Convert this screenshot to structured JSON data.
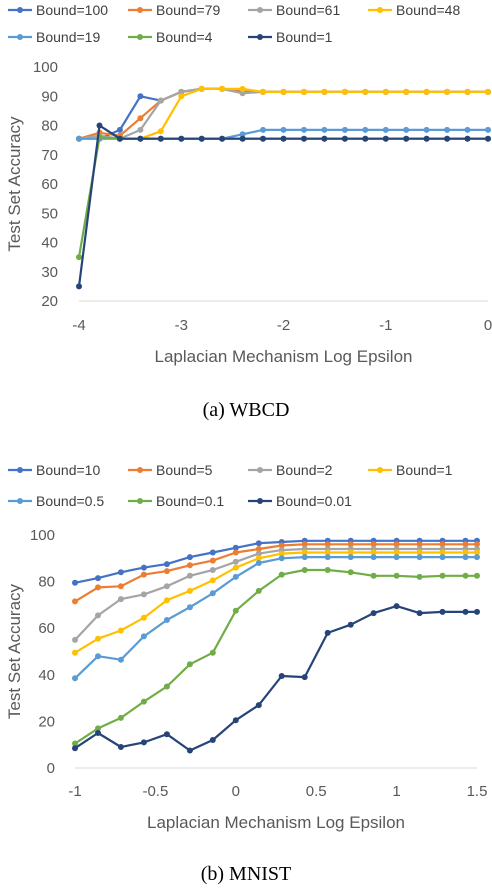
{
  "chart_data": [
    {
      "type": "line",
      "caption": "(a)  WBCD",
      "xlabel": "Laplacian Mechanism Log Epsilon",
      "ylabel": "Test Set Accuracy",
      "xlim": [
        -4,
        0
      ],
      "ylim": [
        20,
        100
      ],
      "xticks": [
        -4,
        -3,
        -2,
        -1,
        0
      ],
      "xtick_labels": [
        "-4",
        "-3",
        "-2",
        "-1",
        "0"
      ],
      "yticks": [
        20,
        30,
        40,
        50,
        60,
        70,
        80,
        90,
        100
      ],
      "ytick_labels": [
        "20",
        "30",
        "40",
        "50",
        "60",
        "70",
        "80",
        "90",
        "100"
      ],
      "grid": false,
      "legend_position": "top",
      "x": [
        -4.0,
        -3.8,
        -3.6,
        -3.4,
        -3.2,
        -3.0,
        -2.8,
        -2.6,
        -2.4,
        -2.2,
        -2.0,
        -1.8,
        -1.6,
        -1.4,
        -1.2,
        -1.0,
        -0.8,
        -0.6,
        -0.4,
        -0.2,
        0.0
      ],
      "series": [
        {
          "name": "Bound=100",
          "color": "#4472C4",
          "values": [
            75.5,
            75.5,
            78.5,
            90,
            88.5,
            91.5,
            92.5,
            92.5,
            91.5,
            91.5,
            91.5,
            91.5,
            91.5,
            91.5,
            91.5,
            91.5,
            91.5,
            91.5,
            91.5,
            91.5,
            91.5
          ]
        },
        {
          "name": "Bound=79",
          "color": "#ED7D31",
          "values": [
            75.5,
            77.5,
            76.5,
            82.5,
            88.5,
            91.5,
            92.5,
            92.5,
            91.5,
            91.5,
            91.5,
            91.5,
            91.5,
            91.5,
            91.5,
            91.5,
            91.5,
            91.5,
            91.5,
            91.5,
            91.5
          ]
        },
        {
          "name": "Bound=61",
          "color": "#A5A5A5",
          "values": [
            75.5,
            76.5,
            75.5,
            78.5,
            88.5,
            91.5,
            92.5,
            92.5,
            91,
            91.5,
            91.5,
            91.5,
            91.5,
            91.5,
            91.5,
            91.5,
            91.5,
            91.5,
            91.5,
            91.5,
            91.5
          ]
        },
        {
          "name": "Bound=48",
          "color": "#FFC000",
          "values": [
            75.5,
            75.5,
            75.5,
            75.5,
            78,
            90,
            92.5,
            92.5,
            92.5,
            91.5,
            91.5,
            91.5,
            91.5,
            91.5,
            91.5,
            91.5,
            91.5,
            91.5,
            91.5,
            91.5,
            91.5
          ]
        },
        {
          "name": "Bound=19",
          "color": "#5B9BD5",
          "values": [
            75.5,
            75.5,
            75.5,
            75.5,
            75.5,
            75.5,
            75.5,
            75.5,
            77,
            78.5,
            78.5,
            78.5,
            78.5,
            78.5,
            78.5,
            78.5,
            78.5,
            78.5,
            78.5,
            78.5,
            78.5
          ]
        },
        {
          "name": "Bound=4",
          "color": "#70AD47",
          "values": [
            35,
            76,
            75.5,
            75.5,
            75.5,
            75.5,
            75.5,
            75.5,
            75.5,
            75.5,
            75.5,
            75.5,
            75.5,
            75.5,
            75.5,
            75.5,
            75.5,
            75.5,
            75.5,
            75.5,
            75.5
          ]
        },
        {
          "name": "Bound=1",
          "color": "#264478",
          "values": [
            25,
            80,
            75.5,
            75.5,
            75.5,
            75.5,
            75.5,
            75.5,
            75.5,
            75.5,
            75.5,
            75.5,
            75.5,
            75.5,
            75.5,
            75.5,
            75.5,
            75.5,
            75.5,
            75.5,
            75.5
          ]
        }
      ]
    },
    {
      "type": "line",
      "caption": "(b)  MNIST",
      "xlabel": "Laplacian Mechanism Log Epsilon",
      "ylabel": "Test Set Accuracy",
      "xlim": [
        -1,
        1.5
      ],
      "ylim": [
        0,
        100
      ],
      "xticks": [
        -1,
        -0.5,
        0,
        0.5,
        1,
        1.5
      ],
      "xtick_labels": [
        "-1",
        "-0.5",
        "0",
        "0.5",
        "1",
        "1.5"
      ],
      "yticks": [
        0,
        20,
        40,
        60,
        80,
        100
      ],
      "ytick_labels": [
        "0",
        "20",
        "40",
        "60",
        "80",
        "100"
      ],
      "grid": false,
      "legend_position": "top",
      "x": [
        -1.0,
        -0.8571,
        -0.7143,
        -0.5714,
        -0.4286,
        -0.2857,
        -0.1429,
        0.0,
        0.1429,
        0.2857,
        0.4286,
        0.5714,
        0.7143,
        0.8571,
        1.0,
        1.1429,
        1.2857,
        1.4286,
        1.5714
      ],
      "series": [
        {
          "name": "Bound=10",
          "color": "#4472C4",
          "values": [
            79.5,
            81.5,
            84,
            86,
            87.5,
            90.5,
            92.5,
            94.5,
            96.5,
            97,
            97.5,
            97.5,
            97.5,
            97.5,
            97.5,
            97.5,
            97.5,
            97.5,
            97.5
          ]
        },
        {
          "name": "Bound=5",
          "color": "#ED7D31",
          "values": [
            71.5,
            77.5,
            78,
            83,
            84.5,
            87,
            89,
            92.5,
            94,
            95.5,
            96,
            96,
            96,
            96,
            96,
            96,
            96,
            96,
            96
          ]
        },
        {
          "name": "Bound=2",
          "color": "#A5A5A5",
          "values": [
            55,
            65.5,
            72.5,
            74.5,
            78,
            82.5,
            85,
            88.5,
            92,
            93.5,
            94,
            94,
            94,
            94,
            94,
            94,
            94,
            94,
            94
          ]
        },
        {
          "name": "Bound=1",
          "color": "#FFC000",
          "values": [
            49.5,
            55.5,
            59,
            64.5,
            72,
            76,
            80.5,
            86,
            90,
            92,
            92.5,
            92.5,
            92.5,
            92.5,
            92.5,
            92.5,
            92.5,
            92.5,
            92.5
          ]
        },
        {
          "name": "Bound=0.5",
          "color": "#5B9BD5",
          "values": [
            38.5,
            48,
            46.5,
            56.5,
            63.5,
            69,
            75,
            82,
            88,
            90,
            90.5,
            90.5,
            90.5,
            90.5,
            90.5,
            90.5,
            90.5,
            90.5,
            90.5
          ]
        },
        {
          "name": "Bound=0.1",
          "color": "#70AD47",
          "values": [
            10.5,
            17,
            21.5,
            28.5,
            35,
            44.5,
            49.5,
            67.5,
            76,
            83,
            85,
            85,
            84,
            82.5,
            82.5,
            82,
            82.5,
            82.5,
            82.5
          ]
        },
        {
          "name": "Bound=0.01",
          "color": "#264478",
          "values": [
            8.5,
            15,
            9,
            11,
            14.5,
            7.5,
            12,
            20.5,
            27,
            39.5,
            39,
            58,
            61.5,
            66.5,
            69.5,
            66.5,
            67,
            67,
            67
          ]
        }
      ]
    }
  ]
}
